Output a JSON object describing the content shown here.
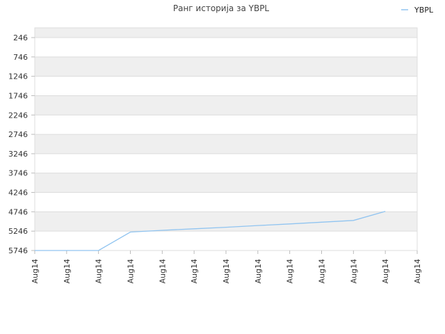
{
  "chart_data": {
    "type": "line",
    "title": "Ранг историја за YBPL",
    "xlabel": "",
    "ylabel": "",
    "y_reversed": true,
    "ylim": [
      246,
      5746
    ],
    "yticks": [
      246,
      746,
      1246,
      1746,
      2246,
      2746,
      3246,
      3746,
      4246,
      4746,
      5246,
      5746
    ],
    "xticks": [
      "Aug14",
      "Aug14",
      "Aug14",
      "Aug14",
      "Aug14",
      "Aug14",
      "Aug14",
      "Aug14",
      "Aug14",
      "Aug14",
      "Aug14",
      "Aug14",
      "Aug14"
    ],
    "grid": true,
    "legend_position": "top-right",
    "series": [
      {
        "name": "YBPL",
        "color": "#90c4f0",
        "x": [
          0,
          1,
          2,
          3,
          4,
          5,
          6,
          7,
          8,
          9,
          10,
          11
        ],
        "values": [
          5746,
          5746,
          5746,
          5270,
          5225,
          5185,
          5145,
          5100,
          5060,
          5015,
          4970,
          4735
        ]
      }
    ]
  }
}
